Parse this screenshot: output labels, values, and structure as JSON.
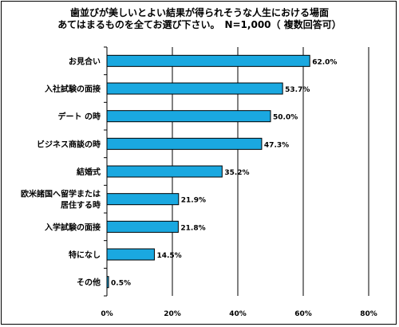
{
  "chart_data": {
    "type": "bar",
    "orientation": "horizontal",
    "title": [
      "歯並びが美しいとよい結果が得られそうな人生における場面",
      "あてはまるものを全てお選び下さい。　N=1,000（ 複数回答可）"
    ],
    "categories": [
      [
        "お見合い"
      ],
      [
        "入社試験の面接"
      ],
      [
        "デート の時"
      ],
      [
        "ビジネス商談の時"
      ],
      [
        "結婚式"
      ],
      [
        "欧米諸国へ留学または",
        "居住する時"
      ],
      [
        "入学試験の面接"
      ],
      [
        "特になし"
      ],
      [
        "その他"
      ]
    ],
    "values": [
      62.0,
      53.7,
      50.0,
      47.3,
      35.2,
      21.9,
      21.8,
      14.5,
      0.5
    ],
    "value_labels": [
      "62.0%",
      "53.7%",
      "50.0%",
      "47.3%",
      "35.2%",
      "21.9%",
      "21.8%",
      "14.5%",
      "0.5%"
    ],
    "xlim": [
      0,
      80
    ],
    "xticks": [
      0,
      20,
      40,
      60,
      80
    ],
    "xtick_labels": [
      "0%",
      "20%",
      "40%",
      "60%",
      "80%"
    ],
    "grid": true,
    "bar_color": "#1aa8e0",
    "bar_edge_color": "#000000"
  }
}
